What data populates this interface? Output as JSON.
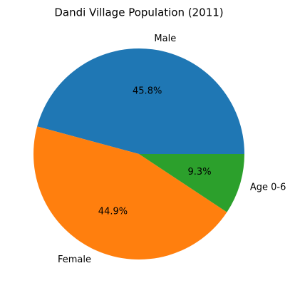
{
  "chart_data": {
    "type": "pie",
    "title": "Dandi Village Population (2011)",
    "categories": [
      "Male",
      "Female",
      "Age 0-6"
    ],
    "values": [
      45.8,
      44.9,
      9.3
    ],
    "value_labels": [
      "45.8%",
      "44.9%",
      "9.3%"
    ],
    "colors": [
      "#1f77b4",
      "#ff7f0e",
      "#2ca02c"
    ]
  }
}
